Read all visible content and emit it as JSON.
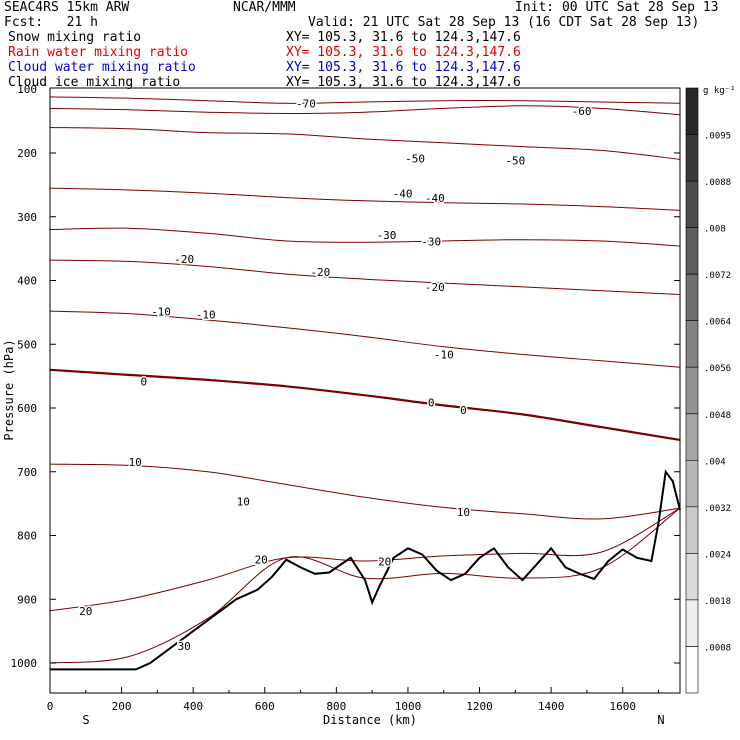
{
  "header": {
    "model": "SEAC4RS 15km ARW",
    "center": "NCAR/MMM",
    "init": "Init: 00 UTC Sat 28 Sep 13",
    "fcst": "Fcst:   21 h",
    "valid": "Valid: 21 UTC Sat 28 Sep 13 (16 CDT Sat 28 Sep 13)"
  },
  "fields": [
    {
      "name": "Snow mixing ratio",
      "xy": "XY= 105.3, 31.6 to 124.3,147.6",
      "color": "#000000"
    },
    {
      "name": "Rain water mixing ratio",
      "xy": "XY= 105.3, 31.6 to 124.3,147.6",
      "color": "#e00000"
    },
    {
      "name": "Cloud water mixing ratio",
      "xy": "XY= 105.3, 31.6 to 124.3,147.6",
      "color": "#0000d0"
    },
    {
      "name": "Cloud ice mixing ratio",
      "xy": "XY= 105.3, 31.6 to 124.3,147.6",
      "color": "#000000"
    }
  ],
  "colorbar": {
    "unit": "g kg⁻¹",
    "labels": [
      ".0095",
      ".0088",
      ".008",
      ".0072",
      ".0064",
      ".0056",
      ".0048",
      ".004",
      ".0032",
      ".0024",
      ".0018",
      ".0008"
    ]
  },
  "chart_data": {
    "type": "contour cross-section",
    "xlabel": "Distance (km)",
    "ylabel": "Pressure (hPa)",
    "xlim": [
      0,
      1760
    ],
    "ylim": [
      1050,
      110
    ],
    "x_ticks": [
      "0",
      "200",
      "400",
      "600",
      "800",
      "1000",
      "1200",
      "1400",
      "1600"
    ],
    "y_ticks": [
      "200",
      "300",
      "400",
      "500",
      "600",
      "700",
      "800",
      "900",
      "1000"
    ],
    "x_tick_values": [
      0,
      200,
      400,
      600,
      800,
      1000,
      1200,
      1400,
      1600
    ],
    "y_tick_values": [
      200,
      300,
      400,
      500,
      600,
      700,
      800,
      900,
      1000
    ],
    "y_partial_label": "100",
    "end_labels": {
      "left": "S",
      "right": "N"
    },
    "contour_color": "#7a0000",
    "terrain_color": "#000000",
    "contour_labels": [
      {
        "text": "-70",
        "x": 715,
        "p": 124
      },
      {
        "text": "-60",
        "x": 1485,
        "p": 136
      },
      {
        "text": "-50",
        "x": 1020,
        "p": 210
      },
      {
        "text": "-50",
        "x": 1300,
        "p": 213
      },
      {
        "text": "-40",
        "x": 985,
        "p": 265
      },
      {
        "text": "-40",
        "x": 1075,
        "p": 272
      },
      {
        "text": "-30",
        "x": 940,
        "p": 330
      },
      {
        "text": "-30",
        "x": 1065,
        "p": 340
      },
      {
        "text": "-20",
        "x": 375,
        "p": 368
      },
      {
        "text": "-20",
        "x": 755,
        "p": 388
      },
      {
        "text": "-20",
        "x": 1075,
        "p": 412
      },
      {
        "text": "-10",
        "x": 310,
        "p": 450
      },
      {
        "text": "-10",
        "x": 435,
        "p": 455
      },
      {
        "text": "-10",
        "x": 1100,
        "p": 518
      },
      {
        "text": "0",
        "x": 262,
        "p": 560
      },
      {
        "text": "0",
        "x": 1065,
        "p": 593
      },
      {
        "text": "0",
        "x": 1155,
        "p": 605
      },
      {
        "text": "10",
        "x": 238,
        "p": 686
      },
      {
        "text": "10",
        "x": 540,
        "p": 748
      },
      {
        "text": "10",
        "x": 1155,
        "p": 765
      },
      {
        "text": "20",
        "x": 590,
        "p": 839
      },
      {
        "text": "20",
        "x": 935,
        "p": 842
      },
      {
        "text": "20",
        "x": 100,
        "p": 920
      },
      {
        "text": "30",
        "x": 375,
        "p": 975
      }
    ],
    "isotherms_hPa_at_x": {
      "x": [
        0,
        220,
        440,
        660,
        880,
        1100,
        1320,
        1540,
        1760
      ],
      "levels": [
        {
          "value": -70,
          "p": [
            112,
            114,
            118,
            122,
            120,
            118,
            118,
            120,
            122
          ]
        },
        {
          "value": -60,
          "p": [
            130,
            132,
            136,
            138,
            136,
            130,
            126,
            130,
            140
          ]
        },
        {
          "value": -50,
          "p": [
            160,
            162,
            168,
            170,
            178,
            184,
            190,
            196,
            210
          ]
        },
        {
          "value": -40,
          "p": [
            255,
            258,
            263,
            270,
            275,
            278,
            280,
            284,
            290
          ]
        },
        {
          "value": -30,
          "p": [
            320,
            318,
            326,
            338,
            340,
            338,
            336,
            338,
            346
          ]
        },
        {
          "value": -20,
          "p": [
            368,
            370,
            378,
            390,
            398,
            404,
            410,
            416,
            422
          ]
        },
        {
          "value": -10,
          "p": [
            448,
            452,
            462,
            474,
            488,
            504,
            516,
            526,
            536
          ]
        },
        {
          "value": 0,
          "p": [
            540,
            548,
            556,
            566,
            580,
            596,
            610,
            630,
            650
          ]
        },
        {
          "value": 10,
          "p": [
            688,
            690,
            700,
            720,
            740,
            756,
            766,
            774,
            780
          ]
        },
        {
          "value": 20,
          "p": [
            918,
            900,
            870,
            845,
            840,
            832,
            828,
            826,
            825
          ]
        },
        {
          "value": 30,
          "p": [
            1000,
            990,
            960,
            940,
            935,
            928,
            922,
            920,
            918
          ]
        }
      ]
    },
    "terrain_surface": {
      "x": [
        0,
        120,
        240,
        280,
        340,
        400,
        460,
        520,
        580,
        620,
        660,
        700,
        740,
        780,
        840,
        880,
        900,
        920,
        960,
        1000,
        1040,
        1080,
        1120,
        1160,
        1200,
        1240,
        1280,
        1320,
        1360,
        1400,
        1440,
        1480,
        1520,
        1560,
        1600,
        1640,
        1680,
        1700,
        1720,
        1740,
        1760
      ],
      "p": [
        1010,
        1010,
        1010,
        1000,
        975,
        950,
        925,
        900,
        885,
        865,
        838,
        850,
        860,
        858,
        835,
        870,
        905,
        880,
        835,
        820,
        830,
        855,
        870,
        860,
        835,
        820,
        850,
        870,
        845,
        820,
        850,
        860,
        868,
        840,
        822,
        835,
        840,
        780,
        700,
        715,
        760
      ]
    }
  }
}
